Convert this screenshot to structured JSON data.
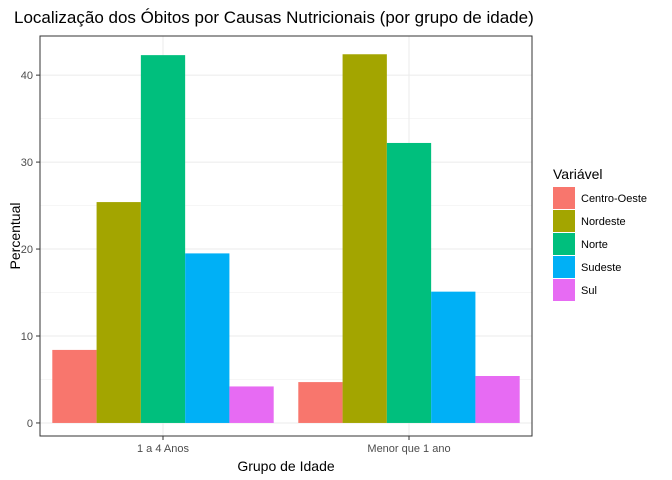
{
  "chart_data": {
    "type": "bar",
    "title": "Localização dos Óbitos por Causas Nutricionais (por grupo de idade)",
    "xlabel": "Grupo de Idade",
    "ylabel": "Percentual",
    "categories": [
      "1 a 4 Anos",
      "Menor que 1 ano"
    ],
    "ylim": [
      -1.5,
      44.5
    ],
    "yticks": [
      0,
      10,
      20,
      30,
      40
    ],
    "grid": true,
    "legend": {
      "title": "Variável",
      "position": "right"
    },
    "series": [
      {
        "name": "Centro-Oeste",
        "color": "#F8766D",
        "values": [
          8.4,
          4.7
        ]
      },
      {
        "name": "Nordeste",
        "color": "#A3A500",
        "values": [
          25.4,
          42.4
        ]
      },
      {
        "name": "Norte",
        "color": "#00BF7D",
        "values": [
          42.3,
          32.2
        ]
      },
      {
        "name": "Sudeste",
        "color": "#00B0F6",
        "values": [
          19.5,
          15.1
        ]
      },
      {
        "name": "Sul",
        "color": "#E76BF3",
        "values": [
          4.2,
          5.4
        ]
      }
    ]
  }
}
